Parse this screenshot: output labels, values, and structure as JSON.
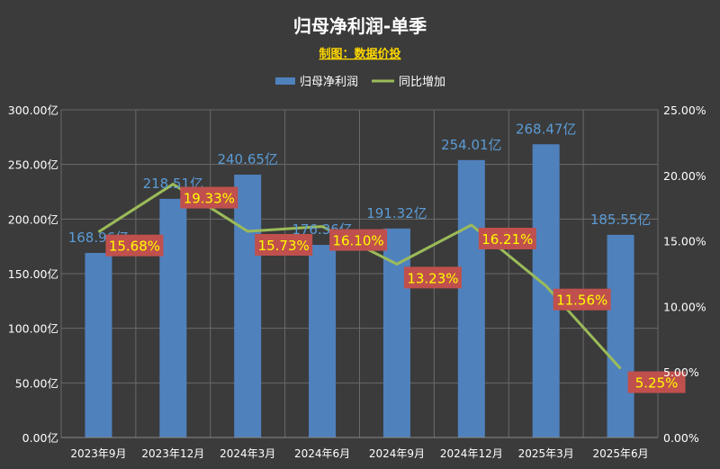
{
  "chart_data": {
    "type": "bar",
    "title": "归母净利润-单季",
    "subtitle": "制图：数据价投",
    "categories": [
      "2023年9月",
      "2023年12月",
      "2024年3月",
      "2024年6月",
      "2024年9月",
      "2024年12月",
      "2025年3月",
      "2025年6月"
    ],
    "series": [
      {
        "name": "归母净利润",
        "type": "bar",
        "axis": "left",
        "values": [
          168.96,
          218.51,
          240.65,
          176.36,
          191.32,
          254.01,
          268.47,
          185.55
        ],
        "labels": [
          "168.96亿",
          "218.51亿",
          "240.65亿",
          "176.36亿",
          "191.32亿",
          "254.01亿",
          "268.47亿",
          "185.55亿"
        ]
      },
      {
        "name": "同比增加",
        "type": "line",
        "axis": "right",
        "values": [
          15.68,
          19.33,
          15.73,
          16.1,
          13.23,
          16.21,
          11.56,
          5.25
        ],
        "labels": [
          "15.68%",
          "19.33%",
          "15.73%",
          "16.10%",
          "13.23%",
          "16.21%",
          "11.56%",
          "5.25%"
        ]
      }
    ],
    "y_left": {
      "min": 0,
      "max": 300,
      "ticks": [
        "0.00亿",
        "50.00亿",
        "100.00亿",
        "150.00亿",
        "200.00亿",
        "250.00亿",
        "300.00亿"
      ]
    },
    "y_right": {
      "min": 0,
      "max": 25,
      "ticks": [
        "0.00%",
        "5.00%",
        "10.00%",
        "15.00%",
        "20.00%",
        "25.00%"
      ]
    },
    "grid": true,
    "legend": "top-center",
    "colors": {
      "background": "#3b3b3b",
      "bar": "#4f81bd",
      "line": "#9bbb59",
      "title": "#ffffff",
      "subtitle": "#ffd700",
      "axis_text": "#ffffff",
      "bar_label": "#5b9bd5",
      "pct_label_bg": "#c0504d",
      "pct_label_text": "#ffff00",
      "grid": "#6a6a6a"
    }
  }
}
